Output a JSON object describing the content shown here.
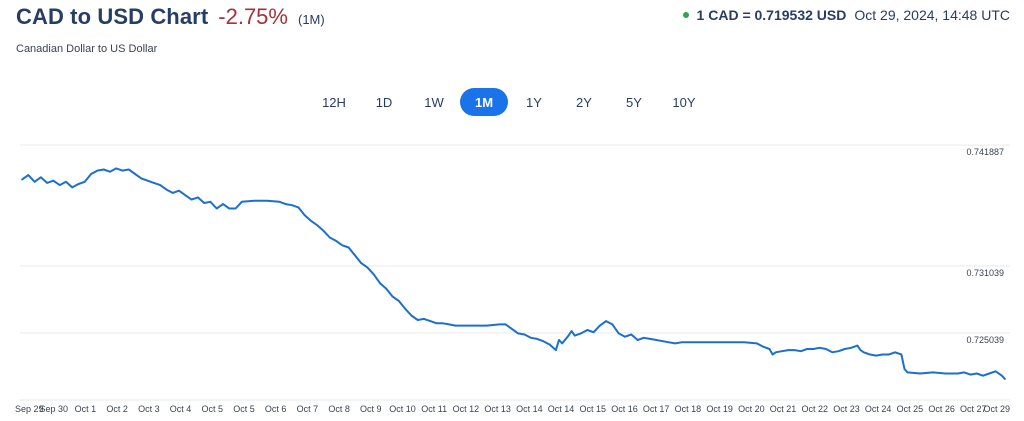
{
  "header": {
    "title": "CAD to USD Chart",
    "change": "-2.75%",
    "period": "(1M)",
    "subtitle": "Canadian Dollar to US Dollar",
    "rate": "1 CAD = 0.719532 USD",
    "timestamp": "Oct 29, 2024, 14:48 UTC"
  },
  "range_buttons": [
    {
      "label": "12H",
      "active": false
    },
    {
      "label": "1D",
      "active": false
    },
    {
      "label": "1W",
      "active": false
    },
    {
      "label": "1M",
      "active": true
    },
    {
      "label": "1Y",
      "active": false
    },
    {
      "label": "2Y",
      "active": false
    },
    {
      "label": "5Y",
      "active": false
    },
    {
      "label": "10Y",
      "active": false
    }
  ],
  "colors": {
    "line": "#1c6fd1",
    "accent": "#1a73e8",
    "negative": "#a3323a",
    "live": "#2ea44f"
  },
  "chart_data": {
    "type": "line",
    "title": "CAD to USD Chart",
    "y_tick_labels": [
      "0.741887",
      "0.731039",
      "0.725039"
    ],
    "x_tick_labels": [
      "Sep 29",
      "Sep 30",
      "Oct 1",
      "Oct 2",
      "Oct 3",
      "Oct 4",
      "Oct 5",
      "Oct 5",
      "Oct 6",
      "Oct 7",
      "Oct 8",
      "Oct 9",
      "Oct 10",
      "Oct 11",
      "Oct 12",
      "Oct 13",
      "Oct 14",
      "Oct 14",
      "Oct 15",
      "Oct 16",
      "Oct 17",
      "Oct 18",
      "Oct 19",
      "Oct 20",
      "Oct 21",
      "Oct 22",
      "Oct 23",
      "Oct 24",
      "Oct 25",
      "Oct 26",
      "Oct 27",
      "Oct 29"
    ],
    "ylim": [
      0.7192,
      0.7419
    ],
    "grid": "horizontal",
    "series": [
      {
        "values": [
          [
            0.0,
            0.7388
          ],
          [
            0.2,
            0.7392
          ],
          [
            0.4,
            0.7386
          ],
          [
            0.6,
            0.739
          ],
          [
            0.8,
            0.7385
          ],
          [
            1.0,
            0.7387
          ],
          [
            1.2,
            0.7383
          ],
          [
            1.4,
            0.7386
          ],
          [
            1.6,
            0.7381
          ],
          [
            1.8,
            0.7384
          ],
          [
            2.0,
            0.7386
          ],
          [
            2.2,
            0.7393
          ],
          [
            2.4,
            0.7396
          ],
          [
            2.6,
            0.7397
          ],
          [
            2.8,
            0.7395
          ],
          [
            3.0,
            0.7398
          ],
          [
            3.2,
            0.7396
          ],
          [
            3.4,
            0.7397
          ],
          [
            3.6,
            0.7393
          ],
          [
            3.8,
            0.7389
          ],
          [
            4.0,
            0.7387
          ],
          [
            4.2,
            0.7385
          ],
          [
            4.4,
            0.7383
          ],
          [
            4.6,
            0.7379
          ],
          [
            4.8,
            0.7376
          ],
          [
            5.0,
            0.7378
          ],
          [
            5.2,
            0.7374
          ],
          [
            5.4,
            0.737
          ],
          [
            5.6,
            0.7372
          ],
          [
            5.8,
            0.7367
          ],
          [
            6.0,
            0.7368
          ],
          [
            6.2,
            0.7362
          ],
          [
            6.4,
            0.7366
          ],
          [
            6.6,
            0.7362
          ],
          [
            6.8,
            0.7362
          ],
          [
            7.0,
            0.7368
          ],
          [
            7.4,
            0.7369
          ],
          [
            7.8,
            0.7369
          ],
          [
            8.2,
            0.7368
          ],
          [
            8.4,
            0.7366
          ],
          [
            8.6,
            0.7365
          ],
          [
            8.8,
            0.7363
          ],
          [
            9.0,
            0.7356
          ],
          [
            9.2,
            0.7351
          ],
          [
            9.4,
            0.7347
          ],
          [
            9.6,
            0.7342
          ],
          [
            9.8,
            0.7336
          ],
          [
            10.0,
            0.7333
          ],
          [
            10.2,
            0.7329
          ],
          [
            10.4,
            0.7327
          ],
          [
            10.6,
            0.732
          ],
          [
            10.8,
            0.7313
          ],
          [
            11.0,
            0.7309
          ],
          [
            11.2,
            0.7303
          ],
          [
            11.4,
            0.7295
          ],
          [
            11.6,
            0.729
          ],
          [
            11.8,
            0.7283
          ],
          [
            12.0,
            0.7279
          ],
          [
            12.2,
            0.7272
          ],
          [
            12.4,
            0.7266
          ],
          [
            12.6,
            0.7262
          ],
          [
            12.8,
            0.7263
          ],
          [
            13.0,
            0.7261
          ],
          [
            13.2,
            0.7259
          ],
          [
            13.4,
            0.7259
          ],
          [
            13.6,
            0.7258
          ],
          [
            13.8,
            0.7257
          ],
          [
            14.0,
            0.7257
          ],
          [
            14.4,
            0.7257
          ],
          [
            14.8,
            0.7257
          ],
          [
            15.2,
            0.7258
          ],
          [
            15.4,
            0.7258
          ],
          [
            15.6,
            0.7254
          ],
          [
            15.8,
            0.725
          ],
          [
            16.0,
            0.7249
          ],
          [
            16.2,
            0.7246
          ],
          [
            16.4,
            0.7245
          ],
          [
            16.6,
            0.7243
          ],
          [
            16.8,
            0.724
          ],
          [
            17.0,
            0.7235
          ],
          [
            17.1,
            0.7244
          ],
          [
            17.2,
            0.7241
          ],
          [
            17.4,
            0.7248
          ],
          [
            17.5,
            0.7252
          ],
          [
            17.6,
            0.7248
          ],
          [
            17.8,
            0.725
          ],
          [
            18.0,
            0.7253
          ],
          [
            18.2,
            0.7251
          ],
          [
            18.4,
            0.7257
          ],
          [
            18.6,
            0.7261
          ],
          [
            18.8,
            0.7258
          ],
          [
            19.0,
            0.725
          ],
          [
            19.2,
            0.7247
          ],
          [
            19.4,
            0.7249
          ],
          [
            19.6,
            0.7244
          ],
          [
            19.8,
            0.7246
          ],
          [
            20.0,
            0.7245
          ],
          [
            20.2,
            0.7244
          ],
          [
            20.4,
            0.7243
          ],
          [
            20.6,
            0.7242
          ],
          [
            20.8,
            0.7241
          ],
          [
            21.0,
            0.7242
          ],
          [
            21.4,
            0.7242
          ],
          [
            21.8,
            0.7242
          ],
          [
            22.2,
            0.7242
          ],
          [
            22.6,
            0.7242
          ],
          [
            23.0,
            0.7242
          ],
          [
            23.4,
            0.7241
          ],
          [
            23.6,
            0.7238
          ],
          [
            23.8,
            0.7236
          ],
          [
            23.9,
            0.7231
          ],
          [
            24.0,
            0.7233
          ],
          [
            24.2,
            0.7234
          ],
          [
            24.4,
            0.7235
          ],
          [
            24.6,
            0.7235
          ],
          [
            24.8,
            0.7234
          ],
          [
            25.0,
            0.7236
          ],
          [
            25.2,
            0.7236
          ],
          [
            25.4,
            0.7237
          ],
          [
            25.6,
            0.7236
          ],
          [
            25.8,
            0.7233
          ],
          [
            26.0,
            0.7234
          ],
          [
            26.2,
            0.7236
          ],
          [
            26.4,
            0.7237
          ],
          [
            26.6,
            0.7239
          ],
          [
            26.7,
            0.7235
          ],
          [
            26.8,
            0.7233
          ],
          [
            27.0,
            0.7231
          ],
          [
            27.2,
            0.723
          ],
          [
            27.4,
            0.7231
          ],
          [
            27.6,
            0.7231
          ],
          [
            27.8,
            0.7233
          ],
          [
            28.0,
            0.7231
          ],
          [
            28.1,
            0.7218
          ],
          [
            28.2,
            0.7215
          ],
          [
            28.6,
            0.7214
          ],
          [
            29.0,
            0.7215
          ],
          [
            29.4,
            0.7214
          ],
          [
            29.8,
            0.7214
          ],
          [
            30.0,
            0.7215
          ],
          [
            30.2,
            0.7213
          ],
          [
            30.4,
            0.7214
          ],
          [
            30.6,
            0.7212
          ],
          [
            30.8,
            0.7214
          ],
          [
            31.0,
            0.7216
          ],
          [
            31.2,
            0.7212
          ],
          [
            31.3,
            0.7209
          ]
        ]
      }
    ]
  }
}
